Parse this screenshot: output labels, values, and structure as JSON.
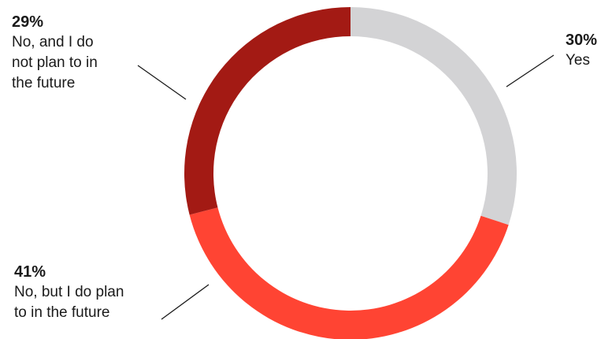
{
  "chart_data": {
    "type": "pie",
    "donut": true,
    "slices": [
      {
        "label": "Yes",
        "value": 30,
        "display": "30%",
        "color": "#d3d3d5"
      },
      {
        "label": "No, but I do plan to in the future",
        "value": 41,
        "display": "41%",
        "color": "#ff4433"
      },
      {
        "label": "No, and I do not plan to in the future",
        "value": 29,
        "display": "29%",
        "color": "#a31a14"
      }
    ],
    "labels": {
      "yes": {
        "pct": "30%",
        "text": "Yes"
      },
      "no_plan": {
        "pct": "41%",
        "text": "No, but I do plan\nto in the future"
      },
      "no_never": {
        "pct": "29%",
        "text": "No, and I do\nnot plan to in\nthe future"
      }
    }
  }
}
